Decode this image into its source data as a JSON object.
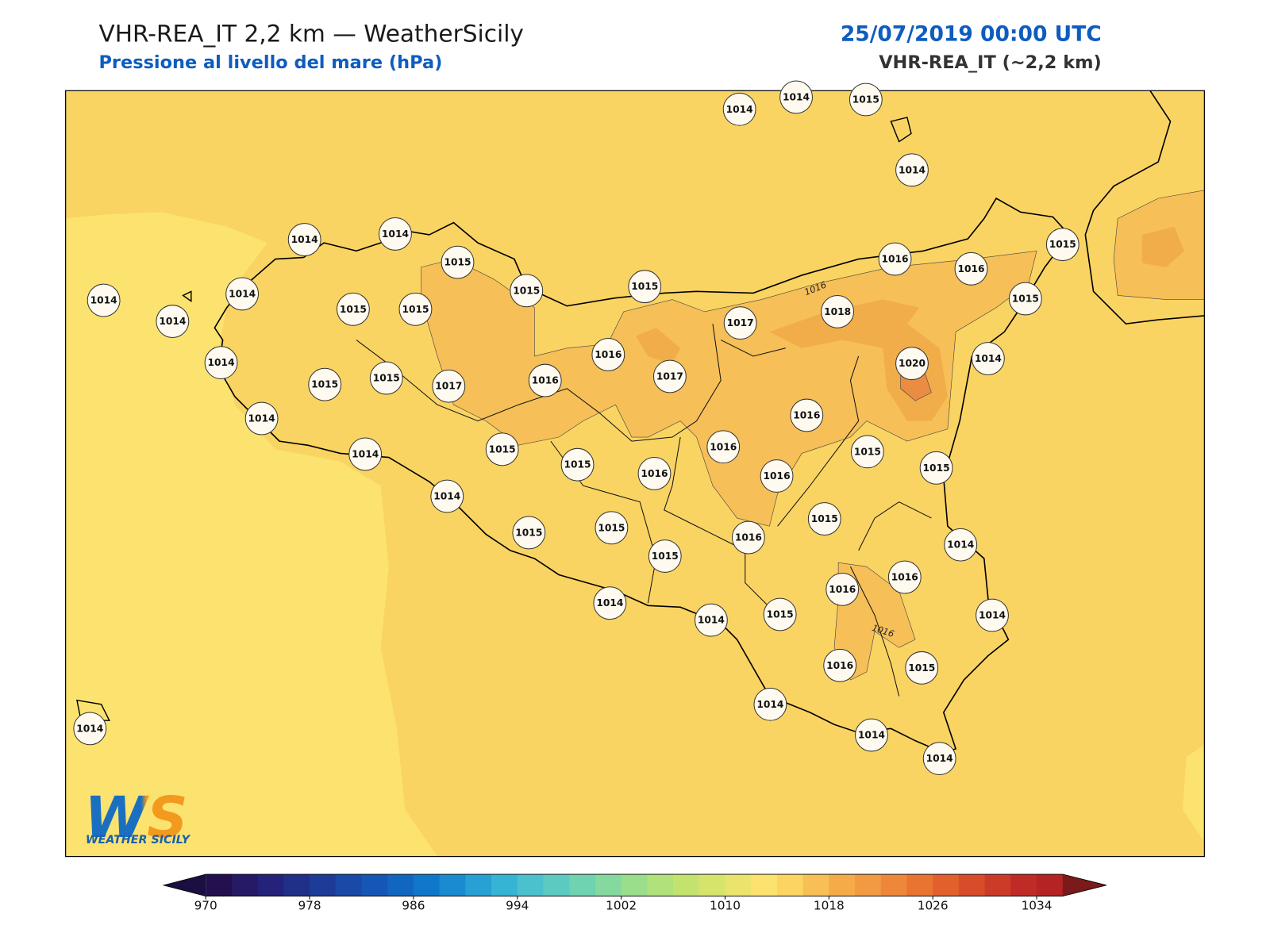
{
  "header": {
    "title": "VHR-REA_IT 2,2 km — WeatherSicily",
    "subtitle": "Pressione al livello del mare (hPa)",
    "date": "25/07/2019 00:00 UTC",
    "model": "VHR-REA_IT (~2,2 km)"
  },
  "map": {
    "stations": [
      1014,
      1014,
      1015,
      1014,
      1014,
      1014,
      1015,
      1015,
      1015,
      1016,
      1016,
      1015,
      1015,
      1014,
      1014,
      1014,
      1015,
      1015,
      1017,
      1018,
      1016,
      1020,
      1014,
      1014,
      1015,
      1015,
      1017,
      1016,
      1017,
      1014,
      1016,
      1016,
      1015,
      1014,
      1015,
      1016,
      1016,
      1015,
      1015,
      1014,
      1015,
      1015,
      1015,
      1016,
      1015,
      1014,
      1016,
      1016,
      1014,
      1014,
      1015,
      1014,
      1016,
      1015,
      1014,
      1014,
      1014,
      1014
    ],
    "contour_labels": [
      1016,
      1016
    ]
  },
  "colorbar": {
    "lim": [
      970,
      1036
    ],
    "ticks": [
      970,
      978,
      986,
      994,
      1002,
      1010,
      1018,
      1026,
      1034
    ],
    "colors": [
      "#23104f",
      "#261a66",
      "#24227a",
      "#203088",
      "#1d3c98",
      "#1a4aa8",
      "#1557b4",
      "#1166bf",
      "#0f78c8",
      "#1a8bd0",
      "#27a0d4",
      "#36b4d4",
      "#4ac1cd",
      "#5ccac0",
      "#6fd2b0",
      "#85d99e",
      "#9ade8b",
      "#b0e17a",
      "#c4e36e",
      "#d7e46b",
      "#ebe46c",
      "#fce36f",
      "#fcd462",
      "#f7bf55",
      "#f4ab48",
      "#f19a42",
      "#ee873a",
      "#e97432",
      "#e2602c",
      "#d84c29",
      "#cc3a28",
      "#c02a27",
      "#b52325"
    ],
    "extend_colors": [
      "#1a0f40",
      "#7a1a1a"
    ]
  },
  "logo": {
    "mark": "WS",
    "name": "WEATHER SICILY"
  }
}
